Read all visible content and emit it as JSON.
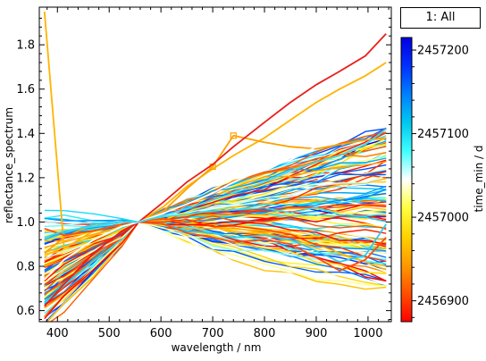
{
  "legend": {
    "label": "1: All"
  },
  "chart_data": {
    "type": "line",
    "title": "",
    "xlabel": "wavelength / nm",
    "ylabel": "reflectance_spectrum",
    "xlim": [
      365,
      1045
    ],
    "ylim": [
      0.55,
      1.97
    ],
    "xticks": [
      400,
      500,
      600,
      700,
      800,
      900,
      1000
    ],
    "yticks": [
      0.6,
      0.8,
      1.0,
      1.2,
      1.4,
      1.6,
      1.8
    ],
    "grid": false,
    "wavelengths": [
      375,
      413,
      470,
      525,
      557,
      605,
      650,
      700,
      740,
      800,
      850,
      900,
      945,
      995,
      1035
    ],
    "series_count": 120,
    "series_pattern": "spectra normalised to 1.0 at 557 nm; below 1.0 short of 557 nm, mostly rising above 1.0 beyond it",
    "highlighted_series": [
      {
        "values": [
          1.95,
          0.88,
          0.96,
          0.99,
          1.0,
          1.07,
          1.16,
          1.24,
          1.3,
          1.38,
          1.46,
          1.54,
          1.6,
          1.66,
          1.72
        ],
        "color": "#ffb400"
      },
      {
        "values": [
          0.86,
          0.93,
          0.99,
          1.0,
          1.0,
          1.05,
          1.15,
          1.25,
          1.39,
          1.36,
          1.34,
          1.33,
          1.35,
          1.37,
          1.38
        ],
        "color": "#ffa000",
        "markers": true
      },
      {
        "values": [
          0.62,
          0.72,
          0.86,
          0.96,
          1.0,
          1.09,
          1.18,
          1.26,
          1.34,
          1.45,
          1.54,
          1.62,
          1.68,
          1.75,
          1.85
        ],
        "color": "#e8201a"
      },
      {
        "values": [
          0.92,
          0.95,
          0.99,
          1.0,
          1.0,
          0.99,
          0.96,
          0.95,
          0.93,
          0.94,
          0.92,
          0.87,
          0.82,
          0.85,
          0.99
        ],
        "color": "#33c8e8"
      },
      {
        "values": [
          0.97,
          0.94,
          0.96,
          0.99,
          1.0,
          0.99,
          0.95,
          0.93,
          0.91,
          0.92,
          0.9,
          0.84,
          0.78,
          0.83,
          0.93
        ],
        "color": "#ff4d10"
      },
      {
        "values": [
          0.74,
          0.83,
          0.92,
          0.98,
          1.0,
          1.04,
          1.08,
          1.13,
          1.18,
          1.24,
          1.28,
          1.34,
          1.38,
          1.43,
          1.47
        ],
        "color": "#ffffff"
      },
      {
        "values": [
          0.93,
          0.96,
          0.98,
          1.0,
          1.0,
          1.03,
          1.06,
          1.1,
          1.13,
          1.18,
          1.23,
          1.27,
          1.3,
          1.35,
          1.42
        ],
        "color": "#40d8f0"
      }
    ],
    "colorbar": {
      "label": "time_min / d",
      "range": [
        2456875,
        2457215
      ],
      "ticks": [
        2456900,
        2457000,
        2457100,
        2457200
      ],
      "colors": [
        "#ff0000",
        "#ff5000",
        "#ff9a00",
        "#ffd200",
        "#ffff40",
        "#ffffff",
        "#40ffff",
        "#00c8f0",
        "#0080ff",
        "#0030ff",
        "#0000e0"
      ]
    }
  }
}
